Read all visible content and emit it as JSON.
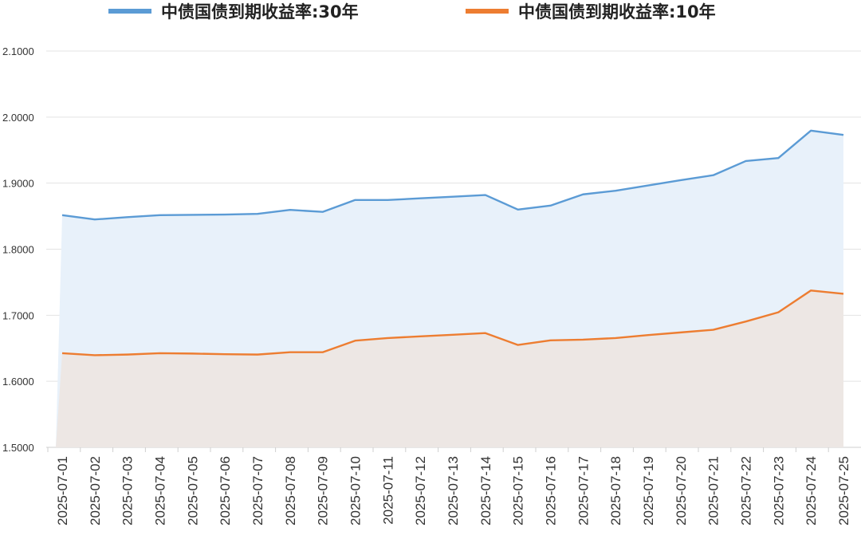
{
  "chart_data": {
    "type": "line",
    "title": "",
    "xlabel": "",
    "ylabel": "",
    "ylim": [
      1.5,
      2.1
    ],
    "y_ticks": [
      "1.5000",
      "1.6000",
      "1.7000",
      "1.8000",
      "1.9000",
      "2.0000",
      "2.1000"
    ],
    "grid": true,
    "legend_position": "top",
    "area_fill": true,
    "categories": [
      "2025-07-01",
      "2025-07-02",
      "2025-07-03",
      "2025-07-04",
      "2025-07-05",
      "2025-07-06",
      "2025-07-07",
      "2025-07-08",
      "2025-07-09",
      "2025-07-10",
      "2025-07-11",
      "2025-07-12",
      "2025-07-13",
      "2025-07-14",
      "2025-07-15",
      "2025-07-16",
      "2025-07-17",
      "2025-07-18",
      "2025-07-19",
      "2025-07-20",
      "2025-07-21",
      "2025-07-22",
      "2025-07-23",
      "2025-07-24",
      "2025-07-25"
    ],
    "series": [
      {
        "name": "中债国债到期收益率:30年",
        "color": "#5b9bd5",
        "fill": "#e8f1fa",
        "values": [
          1.8515,
          1.845,
          1.8485,
          1.8515,
          1.852,
          1.8525,
          1.8535,
          1.8595,
          1.8565,
          1.8745,
          1.8745,
          1.877,
          1.8795,
          1.882,
          1.86,
          1.866,
          1.883,
          1.8885,
          1.8965,
          1.9045,
          1.912,
          1.9335,
          1.938,
          1.9795,
          1.973
        ]
      },
      {
        "name": "中债国债到期收益率:10年",
        "color": "#ed7d31",
        "fill": "#ede7e4",
        "values": [
          1.6425,
          1.6395,
          1.6405,
          1.6425,
          1.642,
          1.641,
          1.6405,
          1.644,
          1.644,
          1.6615,
          1.6655,
          1.668,
          1.6705,
          1.673,
          1.655,
          1.662,
          1.663,
          1.6655,
          1.67,
          1.674,
          1.678,
          1.6905,
          1.7045,
          1.7375,
          1.7325
        ]
      }
    ]
  },
  "colors": {
    "grid": "#e3e3e3",
    "axis_text": "#333333",
    "legend_text": "#222222"
  }
}
